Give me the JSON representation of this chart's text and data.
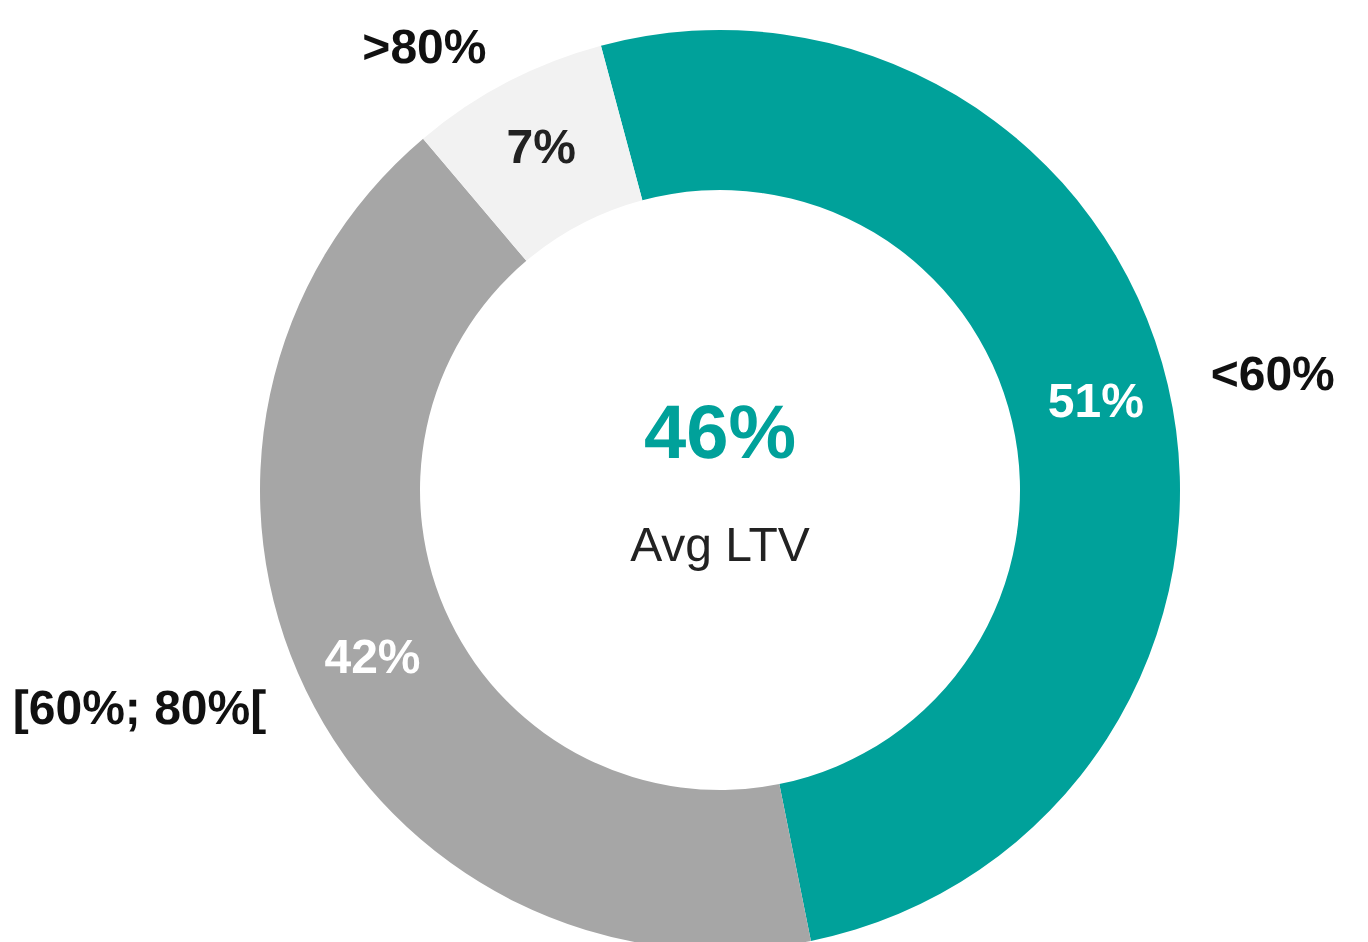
{
  "chart_data": {
    "type": "donut",
    "categories": [
      "<60%",
      "[60%; 80%[",
      ">80%"
    ],
    "values": [
      51,
      42,
      7
    ],
    "value_labels": [
      "51%",
      "42%",
      "7%"
    ],
    "colors": [
      "#00a19a",
      "#a6a6a6",
      "#f2f2f2"
    ],
    "annotations": [
      "46%",
      "Avg LTV"
    ],
    "legend": false
  }
}
